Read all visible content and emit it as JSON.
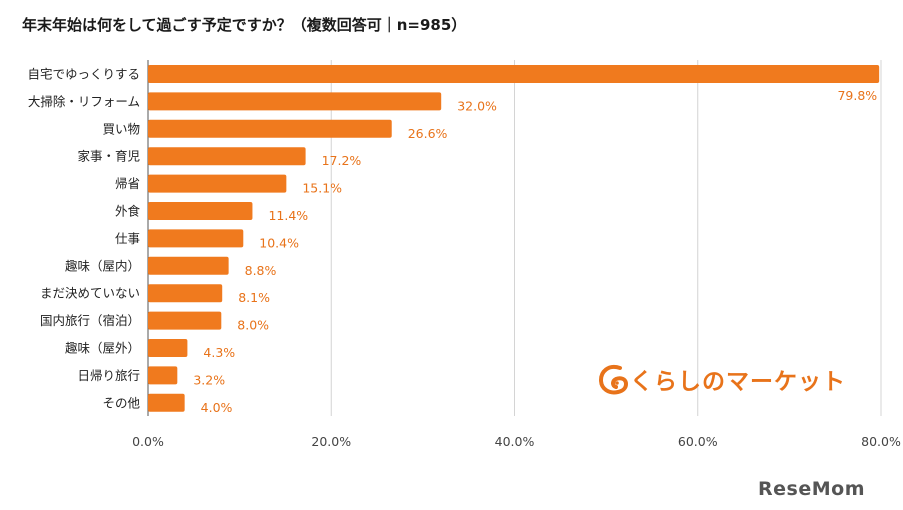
{
  "chart_data": {
    "type": "bar",
    "orientation": "horizontal",
    "title": "年末年始は何をして過ごす予定ですか？（複数回答可｜n=985）",
    "categories": [
      "自宅でゆっくりする",
      "大掃除・リフォーム",
      "買い物",
      "家事・育児",
      "帰省",
      "外食",
      "仕事",
      "趣味（屋内）",
      "まだ決めていない",
      "国内旅行（宿泊）",
      "趣味（屋外）",
      "日帰り旅行",
      "その他"
    ],
    "values": [
      79.8,
      32.0,
      26.6,
      17.2,
      15.1,
      11.4,
      10.4,
      8.8,
      8.1,
      8.0,
      4.3,
      3.2,
      4.0
    ],
    "value_labels": [
      "79.8%",
      "32.0%",
      "26.6%",
      "17.2%",
      "15.1%",
      "11.4%",
      "10.4%",
      "8.8%",
      "8.1%",
      "8.0%",
      "4.3%",
      "3.2%",
      "4.0%"
    ],
    "xlim": [
      0,
      80
    ],
    "x_ticks": [
      0,
      20,
      40,
      60,
      80
    ],
    "x_tick_labels": [
      "0.0%",
      "20.0%",
      "40.0%",
      "60.0%",
      "80.0%"
    ],
    "grid": true,
    "legend": "none",
    "bar_color": "#f07a1e",
    "label_color": "#e8731a"
  },
  "logo": {
    "text": "くらしのマーケット",
    "color": "#e8731a",
    "icon": "kurashi-market-logo-icon"
  },
  "watermark": {
    "text": "ReseMom"
  }
}
